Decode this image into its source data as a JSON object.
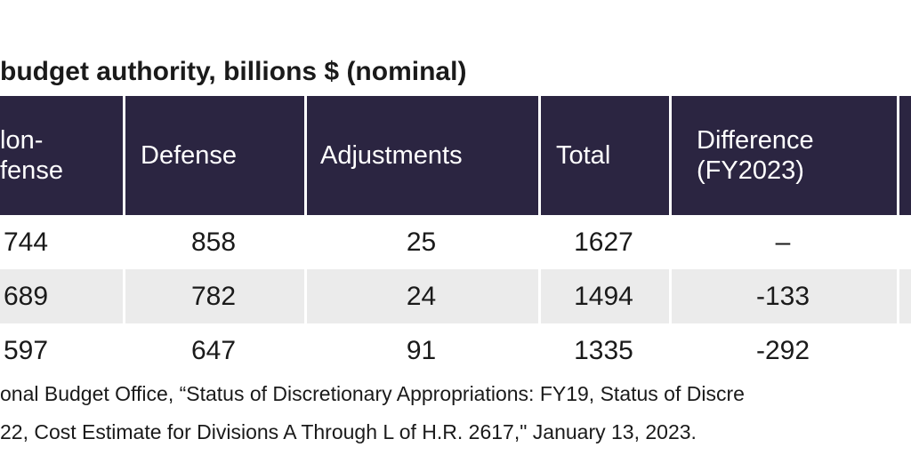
{
  "title": "budget authority, billions $ (nominal)",
  "table": {
    "header": [
      "lon-\nfense",
      "Defense",
      "Adjustments",
      "Total",
      "Difference\n(FY2023)"
    ],
    "rows": [
      [
        "744",
        "858",
        "25",
        "1627",
        "–"
      ],
      [
        "689",
        "782",
        "24",
        "1494",
        "-133"
      ],
      [
        "597",
        "647",
        "91",
        "1335",
        "-292"
      ]
    ]
  },
  "source": [
    "onal Budget Office, “Status of Discretionary Appropriations: FY19, Status of Discre",
    "22, Cost Estimate for Divisions A Through L of H.R. 2617,\" January 13, 2023."
  ]
}
